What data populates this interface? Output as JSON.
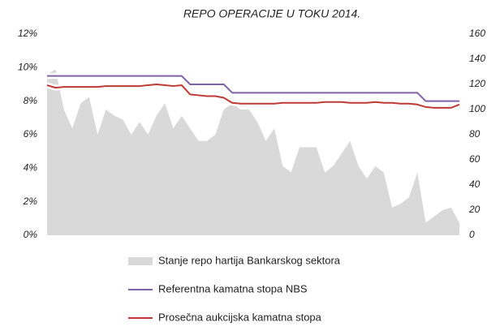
{
  "chart_data": {
    "type": "area-line",
    "title": "REPO OPERACIJE U TOKU 2014.",
    "categories": [
      null,
      null,
      null,
      null,
      null,
      null,
      null,
      null,
      null,
      null,
      null,
      null,
      null,
      null,
      null,
      null,
      null,
      null,
      null,
      null,
      null,
      null,
      null,
      null,
      null,
      null,
      null,
      null,
      null,
      null,
      null,
      null,
      null,
      null,
      null,
      null,
      null,
      null,
      null,
      null,
      null,
      null,
      null,
      null,
      null,
      null,
      null,
      null,
      null,
      null
    ],
    "series": [
      {
        "name": "Stanje repo hartija Bankarskog sektora",
        "color": "#d9d9d9",
        "kind": "area",
        "axis": "y2",
        "values": [
          128,
          132,
          100,
          85,
          105,
          110,
          80,
          100,
          95,
          92,
          80,
          90,
          80,
          95,
          105,
          85,
          95,
          85,
          75,
          75,
          80,
          100,
          105,
          100,
          100,
          90,
          75,
          85,
          55,
          50,
          70,
          70,
          70,
          50,
          55,
          65,
          75,
          55,
          45,
          55,
          50,
          22,
          25,
          30,
          50,
          10,
          15,
          20,
          22,
          10
        ]
      },
      {
        "name": "Referentna kamatna stopa NBS",
        "color": "#7f62a8",
        "kind": "line",
        "values": [
          9.5,
          9.5,
          9.5,
          9.5,
          9.5,
          9.5,
          9.5,
          9.5,
          9.5,
          9.5,
          9.5,
          9.5,
          9.5,
          9.5,
          9.5,
          9.5,
          9.5,
          9.0,
          9.0,
          9.0,
          9.0,
          9.0,
          8.5,
          8.5,
          8.5,
          8.5,
          8.5,
          8.5,
          8.5,
          8.5,
          8.5,
          8.5,
          8.5,
          8.5,
          8.5,
          8.5,
          8.5,
          8.5,
          8.5,
          8.5,
          8.5,
          8.5,
          8.5,
          8.5,
          8.5,
          8.0,
          8.0,
          8.0,
          8.0,
          8.0
        ]
      },
      {
        "name": "Prosečna aukcijska kamatna stopa",
        "color": "#be3a34",
        "kind": "line",
        "values": [
          8.95,
          8.8,
          8.85,
          8.85,
          8.85,
          8.85,
          8.85,
          8.9,
          8.9,
          8.9,
          8.9,
          8.9,
          8.95,
          9.0,
          8.95,
          8.9,
          8.95,
          8.4,
          8.35,
          8.3,
          8.3,
          8.2,
          7.9,
          7.85,
          7.85,
          7.85,
          7.85,
          7.85,
          7.9,
          7.9,
          7.9,
          7.9,
          7.9,
          7.95,
          7.95,
          7.95,
          7.9,
          7.9,
          7.9,
          7.95,
          7.9,
          7.9,
          7.85,
          7.85,
          7.8,
          7.65,
          7.6,
          7.6,
          7.6,
          7.8
        ]
      }
    ],
    "ylim": [
      0,
      12
    ],
    "yticks": [
      {
        "value": 0,
        "label": "0%"
      },
      {
        "value": 2,
        "label": "2%"
      },
      {
        "value": 4,
        "label": "4%"
      },
      {
        "value": 6,
        "label": "6%"
      },
      {
        "value": 8,
        "label": "8%"
      },
      {
        "value": 10,
        "label": "10%"
      },
      {
        "value": 12,
        "label": "12%"
      }
    ],
    "y2lim": [
      0,
      160
    ],
    "y2ticks": [
      0,
      20,
      40,
      60,
      80,
      100,
      120,
      140,
      160
    ],
    "grid": false
  }
}
